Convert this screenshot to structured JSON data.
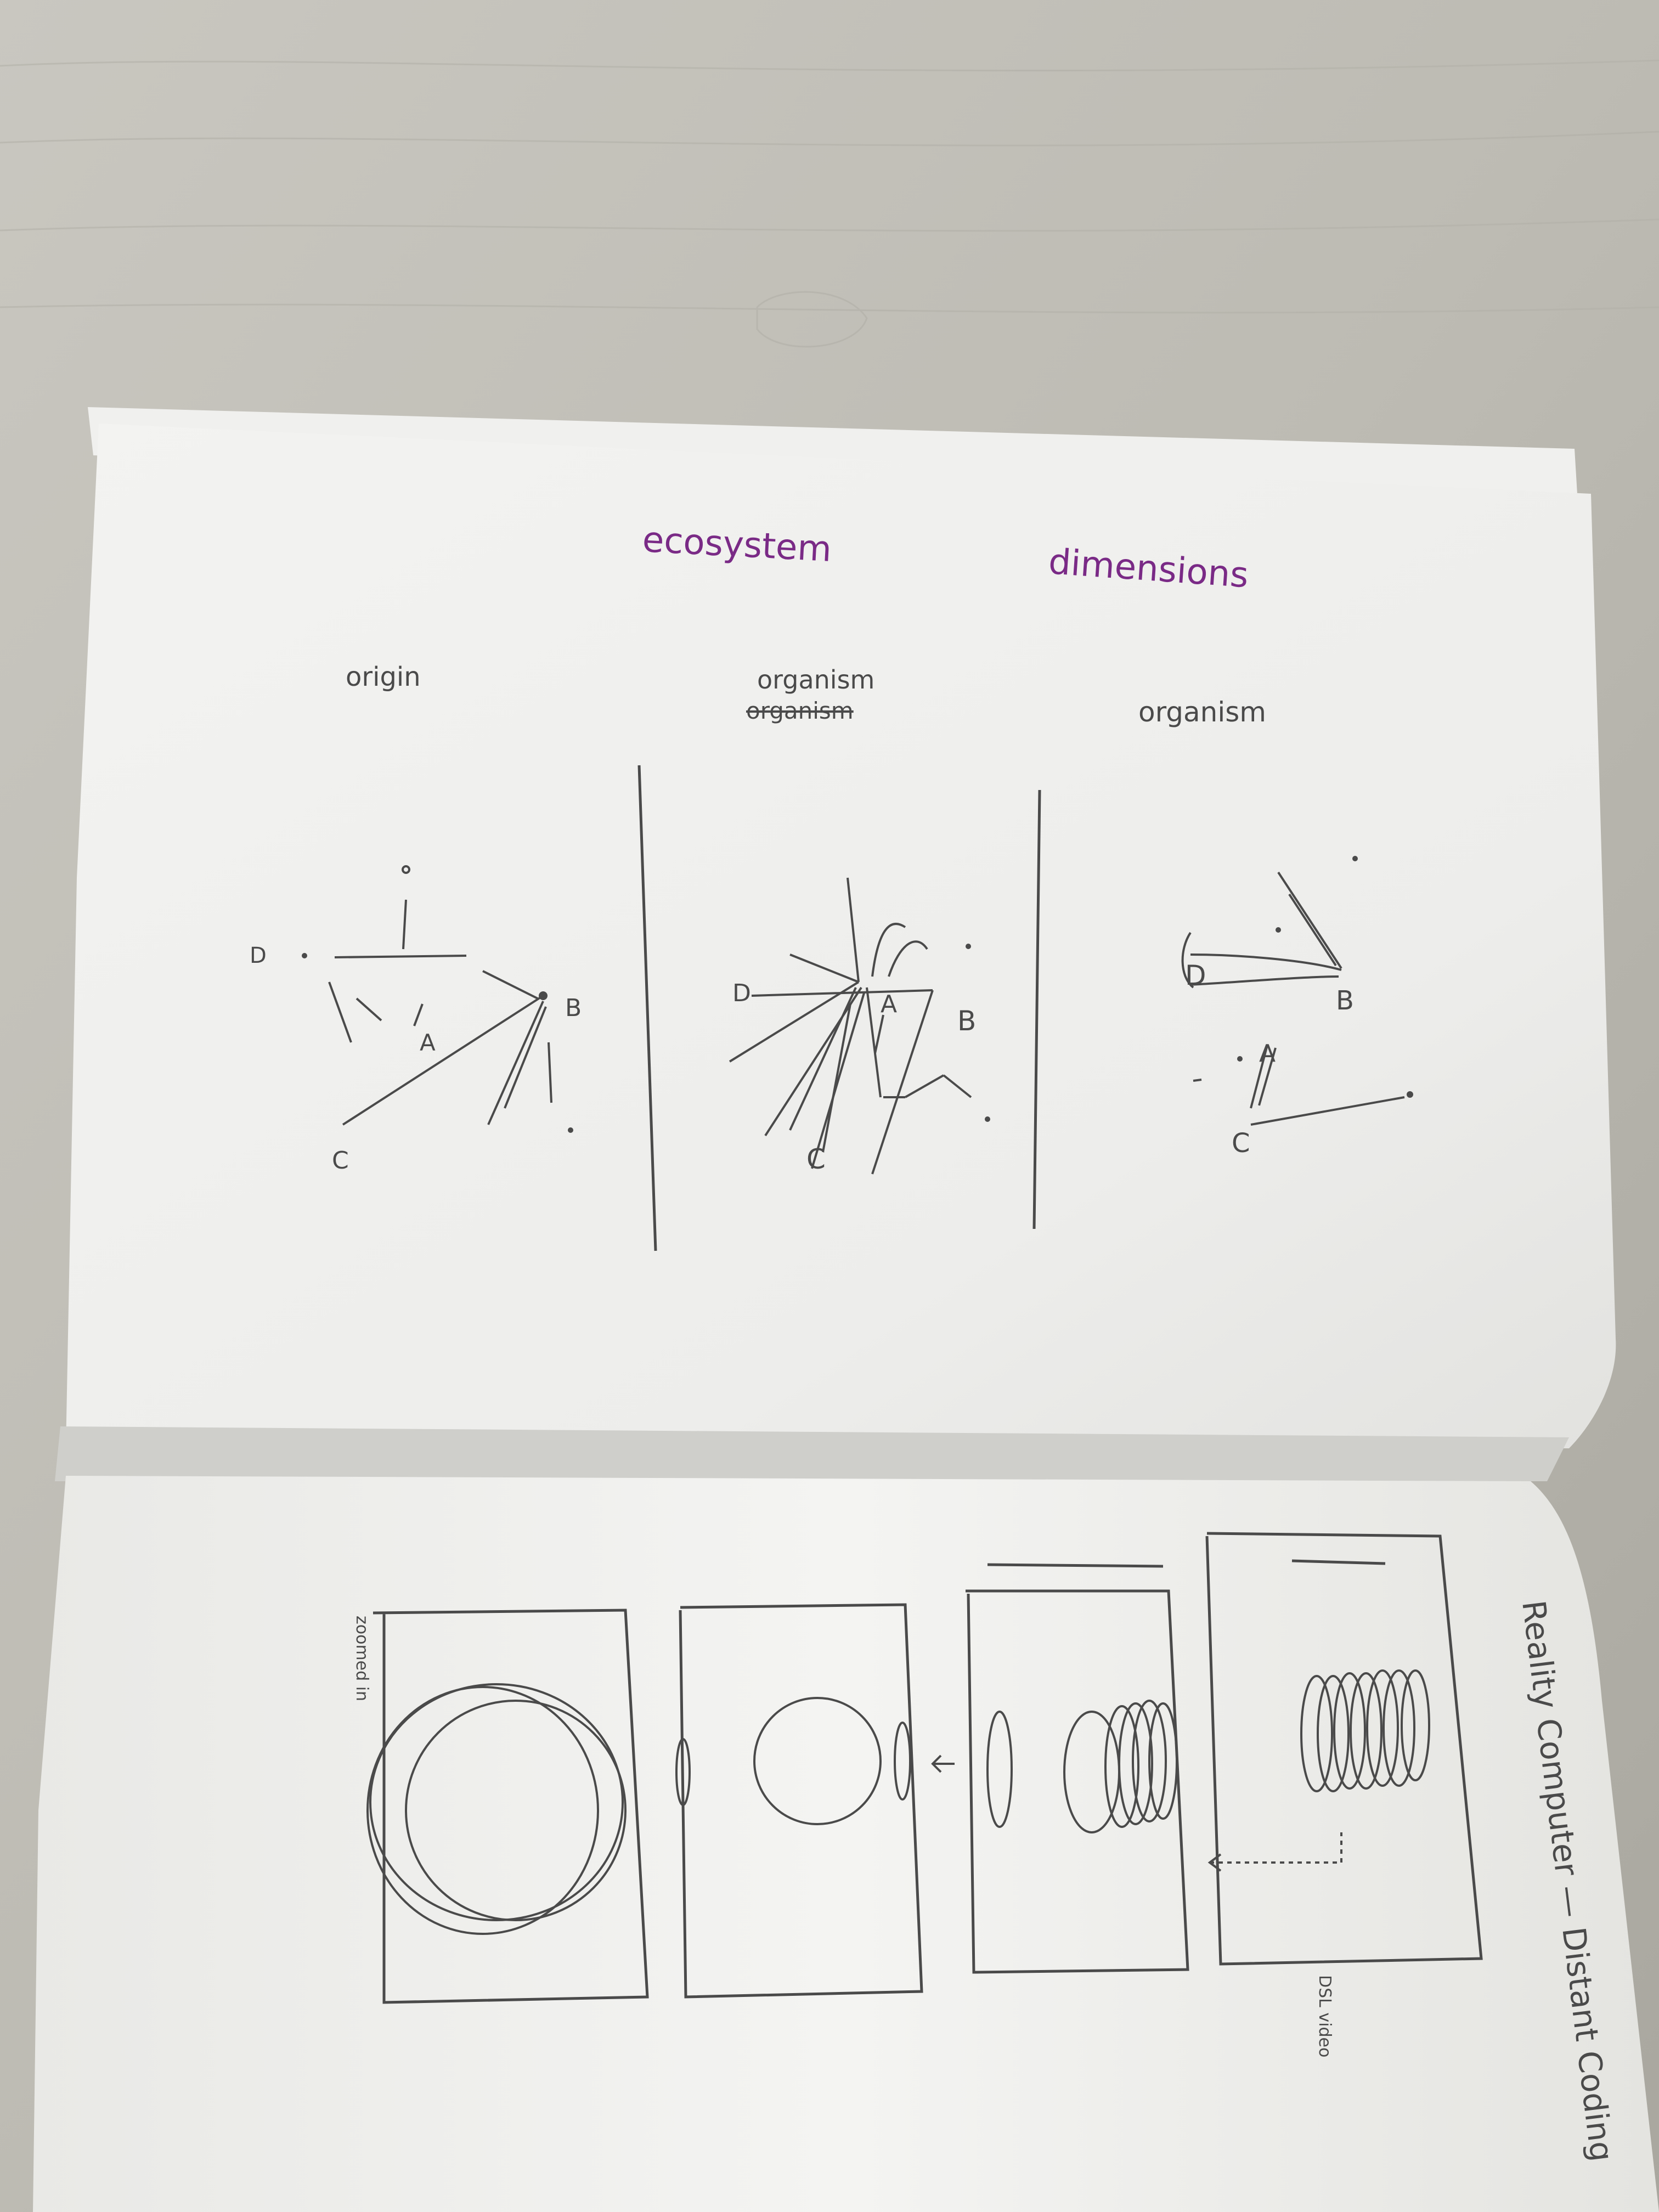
{
  "colors": {
    "table": "#c3c1b9",
    "paper": "#f2f2f0",
    "paper_shadow": "#dcdcd8",
    "pencil": "#4a4a4a",
    "marker": "#7a2a86"
  },
  "top_page": {
    "title_word_1": "ecosystem",
    "title_word_2": "dimensions",
    "panel_1": {
      "heading": "origin"
    },
    "panel_2": {
      "heading_line_1": "organism",
      "heading_line_2": "organism"
    },
    "panel_3": {
      "heading": "organism"
    },
    "node_labels": [
      "A",
      "B",
      "C",
      "D"
    ]
  },
  "bottom_page": {
    "title": "Reality Computer — Distant Coding",
    "sidenote_left": "zoomed in",
    "sidenote_right": "DSL video"
  }
}
